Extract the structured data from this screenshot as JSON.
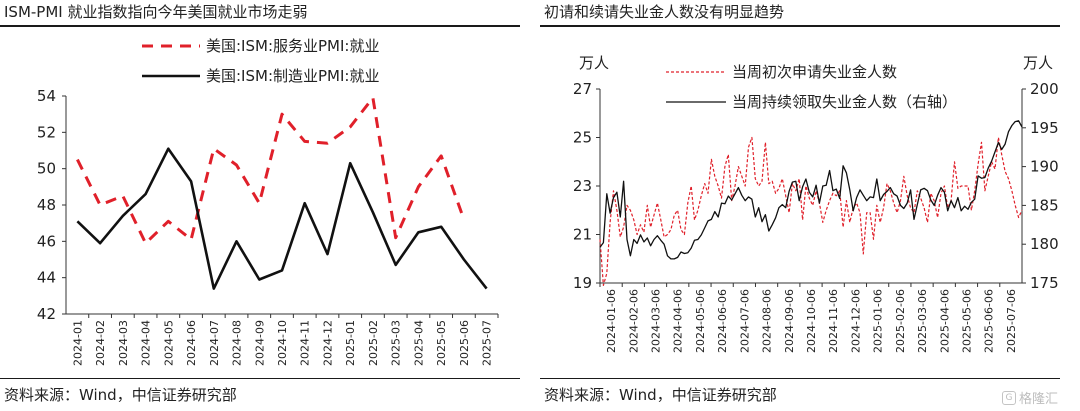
{
  "charts": [
    {
      "title": "ISM-PMI 就业指数指向今年美国就业市场走弱",
      "source": "资料来源：Wind，中信证券研究部"
    },
    {
      "title": "初请和续请失业金人数没有明显趋势",
      "source": "资料来源：Wind，中信证券研究部",
      "watermark": "格隆汇"
    }
  ],
  "chart_data": [
    {
      "type": "line",
      "title": "ISM-PMI 就业指数指向今年美国就业市场走弱",
      "categories": [
        "2024-01",
        "2024-02",
        "2024-03",
        "2024-04",
        "2024-05",
        "2024-06",
        "2024-07",
        "2024-08",
        "2024-09",
        "2024-10",
        "2024-11",
        "2024-12",
        "2025-01",
        "2025-02",
        "2025-03",
        "2025-04",
        "2025-05",
        "2025-06",
        "2025-07"
      ],
      "ylim": [
        42,
        54
      ],
      "yticks": [
        42,
        44,
        46,
        48,
        50,
        52,
        54
      ],
      "series": [
        {
          "name": "美国:ISM:服务业PMI:就业",
          "style": "dashed",
          "color": "#e0202a",
          "values": [
            50.5,
            48.0,
            48.5,
            45.9,
            47.1,
            46.1,
            51.1,
            50.2,
            48.1,
            53.0,
            51.5,
            51.4,
            52.3,
            53.9,
            46.2,
            49.0,
            50.7,
            47.2,
            null
          ]
        },
        {
          "name": "美国:ISM:制造业PMI:就业",
          "style": "solid",
          "color": "#111111",
          "values": [
            47.1,
            45.9,
            47.4,
            48.6,
            51.1,
            49.3,
            43.4,
            46.0,
            43.9,
            44.4,
            48.1,
            45.3,
            50.3,
            47.6,
            44.7,
            46.5,
            46.8,
            45.0,
            43.4
          ]
        }
      ],
      "legend_position": "top-right"
    },
    {
      "type": "line",
      "title": "初请和续请失业金人数没有明显趋势",
      "x_ticks": [
        "2024-01-06",
        "2024-02-06",
        "2024-03-06",
        "2024-04-06",
        "2024-05-06",
        "2024-06-06",
        "2024-07-06",
        "2024-08-06",
        "2024-09-06",
        "2024-10-06",
        "2024-11-06",
        "2024-12-06",
        "2025-01-06",
        "2025-02-06",
        "2025-03-06",
        "2025-04-06",
        "2025-05-06",
        "2025-06-06",
        "2025-07-06"
      ],
      "left_axis": {
        "label": "万人",
        "ylim": [
          19,
          27
        ],
        "yticks": [
          19,
          21,
          23,
          25,
          27
        ]
      },
      "right_axis": {
        "label": "万人",
        "ylim": [
          175,
          200
        ],
        "yticks": [
          175,
          180,
          185,
          190,
          195,
          200
        ]
      },
      "series": [
        {
          "name": "当周初次申请失业金人数",
          "axis": "left",
          "style": "dashed",
          "color": "#e0202a",
          "values": [
            20.8,
            18.9,
            19.4,
            21.5,
            22.8,
            22.0,
            20.9,
            21.3,
            22.2,
            22.0,
            21.6,
            21.0,
            21.4,
            21.1,
            22.2,
            21.3,
            21.8,
            22.3,
            21.6,
            20.9,
            21.0,
            21.2,
            21.8,
            22.0,
            21.2,
            21.0,
            22.3,
            23.0,
            21.6,
            22.0,
            22.6,
            23.1,
            22.7,
            24.1,
            23.4,
            23.0,
            22.5,
            23.8,
            24.3,
            22.4,
            23.0,
            23.8,
            23.4,
            23.0,
            24.6,
            25.0,
            23.3,
            23.0,
            23.2,
            24.8,
            23.1,
            23.2,
            22.7,
            22.9,
            23.3,
            22.6,
            21.9,
            23.1,
            22.8,
            23.3,
            21.6,
            23.0,
            22.5,
            22.2,
            22.8,
            22.3,
            21.5,
            22.0,
            22.4,
            22.7,
            22.6,
            22.8,
            21.3,
            22.4,
            21.5,
            22.1,
            22.3,
            21.9,
            20.2,
            21.9,
            21.9,
            20.8,
            22.2,
            21.5,
            22.1,
            23.1,
            22.8,
            22.3,
            21.9,
            22.4,
            23.4,
            22.6,
            22.1,
            21.9,
            22.8,
            22.5,
            22.1,
            21.5,
            22.7,
            22.4,
            21.7,
            22.7,
            23.0,
            22.1,
            22.4,
            24.0,
            22.9,
            23.0,
            23.0,
            23.0,
            22.0,
            22.8,
            23.9,
            24.8,
            22.8,
            23.4,
            24.0,
            23.7,
            25.0,
            24.3,
            23.6,
            23.3,
            22.8,
            22.2,
            21.7,
            22.0
          ]
        },
        {
          "name": "当周持续领取失业金人数（右轴）",
          "axis": "right",
          "style": "solid",
          "color": "#111111",
          "values": [
            179.6,
            180.2,
            186.5,
            184.0,
            186.0,
            186.7,
            183.5,
            188.1,
            180.6,
            178.5,
            180.6,
            180.1,
            181.2,
            180.3,
            180.8,
            179.8,
            180.6,
            181.1,
            180.5,
            180.0,
            178.5,
            178.1,
            178.1,
            178.3,
            179.0,
            178.8,
            178.9,
            179.5,
            180.5,
            180.6,
            181.2,
            182.1,
            183.0,
            183.2,
            184.2,
            183.5,
            185.3,
            185.2,
            186.2,
            185.7,
            186.5,
            187.3,
            186.3,
            185.6,
            186.1,
            185.8,
            183.5,
            184.7,
            182.9,
            183.8,
            181.7,
            182.5,
            183.4,
            184.7,
            185.1,
            184.7,
            186.8,
            188.0,
            188.1,
            185.6,
            187.4,
            188.4,
            186.7,
            186.1,
            187.6,
            185.3,
            187.5,
            187.6,
            189.5,
            186.9,
            187.1,
            185.9,
            190.1,
            189.2,
            187.0,
            184.3,
            186.0,
            187.0,
            186.3,
            185.6,
            186.1,
            186.0,
            188.4,
            185.6,
            186.4,
            186.8,
            187.3,
            186.5,
            186.2,
            185.0,
            184.6,
            185.3,
            187.0,
            183.2,
            185.1,
            187.0,
            187.2,
            186.9,
            185.7,
            185.0,
            186.3,
            187.3,
            186.7,
            184.3,
            185.6,
            184.7,
            186.0,
            184.3,
            184.9,
            184.5,
            185.4,
            185.8,
            188.8,
            188.5,
            188.6,
            189.8,
            190.7,
            191.9,
            193.1,
            192.2,
            192.9,
            194.5,
            195.3,
            195.8,
            195.9,
            195.1
          ]
        }
      ],
      "legend_position": "top"
    }
  ]
}
